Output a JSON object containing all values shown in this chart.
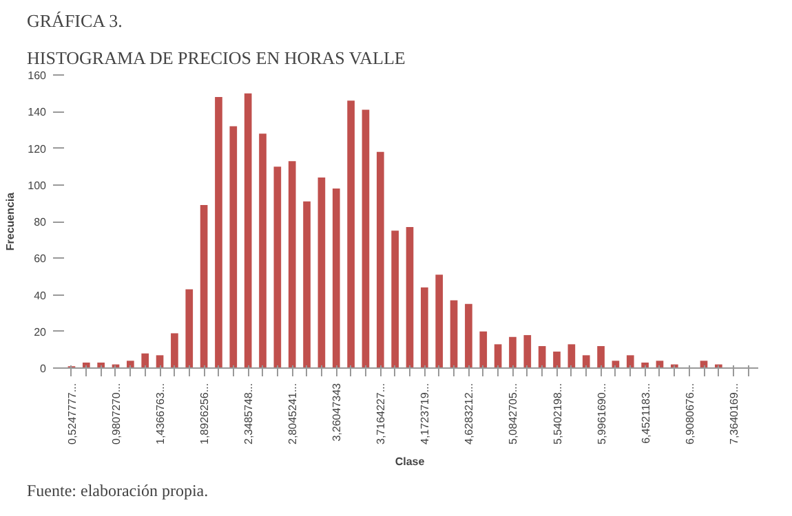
{
  "chart_data": {
    "type": "bar",
    "title": "GRÁFICA 3.",
    "subtitle": "HISTOGRAMA DE PRECIOS EN HORAS VALLE",
    "xlabel": "Clase",
    "ylabel": "Frecuencia",
    "categories": [
      "0,5247777...",
      null,
      null,
      "0,9807270...",
      null,
      null,
      "1,4366763...",
      null,
      null,
      "1,8926256...",
      null,
      null,
      "2,3485748...",
      null,
      null,
      "2,8045241...",
      null,
      null,
      "3,26047343",
      null,
      null,
      "3,7164227...",
      null,
      null,
      "4,1723719...",
      null,
      null,
      "4,6283212...",
      null,
      null,
      "5,0842705...",
      null,
      null,
      "5,5402198...",
      null,
      null,
      "5,9961690...",
      null,
      null,
      "6,4521183...",
      null,
      null,
      "6,9080676...",
      null,
      null,
      "7,3640169...",
      null
    ],
    "values": [
      1,
      3,
      3,
      2,
      4,
      8,
      7,
      19,
      43,
      89,
      148,
      132,
      150,
      128,
      110,
      113,
      91,
      104,
      98,
      146,
      141,
      118,
      75,
      77,
      44,
      51,
      37,
      35,
      20,
      13,
      17,
      18,
      12,
      9,
      13,
      7,
      12,
      4,
      7,
      3,
      4,
      2,
      0,
      4,
      2,
      0,
      0
    ],
    "color": "#c0504d",
    "ylim": [
      0,
      160
    ],
    "yticks": [
      0,
      20,
      40,
      60,
      80,
      100,
      120,
      140,
      160
    ],
    "grid": false,
    "annotations": [
      "Fuente: elaboración propia."
    ]
  }
}
